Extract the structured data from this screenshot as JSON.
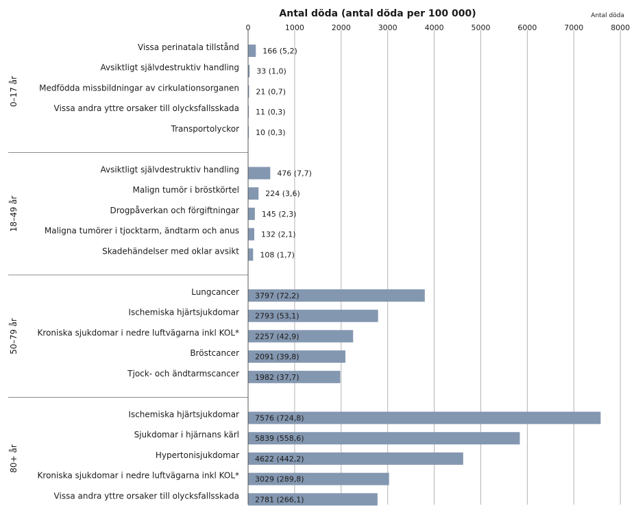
{
  "chart_data": {
    "type": "bar",
    "orientation": "horizontal",
    "title": "Antal döda (antal döda per 100 000)",
    "unit_label": "Antal döda",
    "xlim": [
      0,
      8000
    ],
    "xticks": [
      0,
      1000,
      2000,
      3000,
      4000,
      5000,
      6000,
      7000,
      8000
    ],
    "grid": true,
    "bar_color": "#8497b0",
    "groups": [
      {
        "name": "0–17 år",
        "items": [
          {
            "label": "Vissa perinatala tillstånd",
            "value": 166,
            "value_label": "166 (5,2)"
          },
          {
            "label": "Avsiktligt självdestruktiv handling",
            "value": 33,
            "value_label": "33 (1,0)"
          },
          {
            "label": "Medfödda missbildningar av cirkulationsorganen",
            "value": 21,
            "value_label": "21 (0,7)"
          },
          {
            "label": "Vissa andra yttre orsaker till olycksfallsskada",
            "value": 11,
            "value_label": "11 (0,3)"
          },
          {
            "label": "Transportolyckor",
            "value": 10,
            "value_label": "10 (0,3)"
          }
        ]
      },
      {
        "name": "18–49 år",
        "items": [
          {
            "label": "Avsiktligt självdestruktiv handling",
            "value": 476,
            "value_label": "476 (7,7)"
          },
          {
            "label": "Malign tumör i bröstkörtel",
            "value": 224,
            "value_label": "224 (3,6)"
          },
          {
            "label": "Drogpåverkan och förgiftningar",
            "value": 145,
            "value_label": "145 (2,3)"
          },
          {
            "label": "Maligna tumörer i tjocktarm, ändtarm och anus",
            "value": 132,
            "value_label": "132 (2,1)"
          },
          {
            "label": "Skadehändelser med oklar avsikt",
            "value": 108,
            "value_label": "108 (1,7)"
          }
        ]
      },
      {
        "name": "50–79 år",
        "items": [
          {
            "label": "Lungcancer",
            "value": 3797,
            "value_label": "3797 (72,2)"
          },
          {
            "label": "Ischemiska hjärtsjukdomar",
            "value": 2793,
            "value_label": "2793 (53,1)"
          },
          {
            "label": "Kroniska sjukdomar i nedre luftvägarna inkl KOL*",
            "value": 2257,
            "value_label": "2257 (42,9)"
          },
          {
            "label": "Bröstcancer",
            "value": 2091,
            "value_label": "2091 (39,8)"
          },
          {
            "label": "Tjock- och ändtarmscancer",
            "value": 1982,
            "value_label": "1982 (37,7)"
          }
        ]
      },
      {
        "name": "80+ år",
        "items": [
          {
            "label": "Ischemiska hjärtsjukdomar",
            "value": 7576,
            "value_label": "7576 (724,8)"
          },
          {
            "label": "Sjukdomar i hjärnans kärl",
            "value": 5839,
            "value_label": "5839 (558,6)"
          },
          {
            "label": "Hypertonisjukdomar",
            "value": 4622,
            "value_label": "4622 (442,2)"
          },
          {
            "label": "Kroniska sjukdomar i nedre luftvägarna inkl KOL*",
            "value": 3029,
            "value_label": "3029 (289,8)"
          },
          {
            "label": "Vissa andra yttre orsaker till olycksfallsskada",
            "value": 2781,
            "value_label": "2781 (266,1)"
          }
        ]
      }
    ]
  }
}
